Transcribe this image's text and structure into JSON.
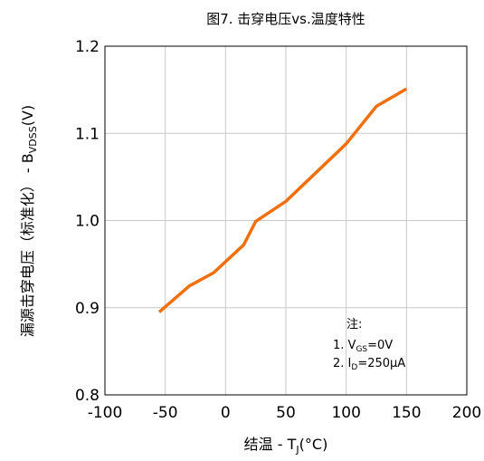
{
  "chart_data": {
    "type": "line",
    "title": "图7. 击穿电压vs.温度特性",
    "xlabel": {
      "main": "结温 - T",
      "sub": "J",
      "suffix": "(°C)"
    },
    "ylabel": {
      "main": "漏源击穿电压（标准化） - B",
      "sub": "VDSS",
      "suffix": "(V)"
    },
    "xlim": [
      -100,
      200
    ],
    "ylim": [
      0.8,
      1.2
    ],
    "x_ticks": [
      "-100",
      "-50",
      "0",
      "50",
      "100",
      "150",
      "200"
    ],
    "y_ticks": [
      "0.8",
      "0.9",
      "1.0",
      "1.1",
      "1.2"
    ],
    "grid": true,
    "series": [
      {
        "color": "#f07010",
        "x": [
          -55,
          -30,
          -10,
          15,
          25,
          50,
          75,
          100,
          125,
          150
        ],
        "y": [
          0.895,
          0.925,
          0.94,
          0.972,
          0.999,
          1.022,
          1.055,
          1.088,
          1.131,
          1.151
        ]
      }
    ],
    "annotation": {
      "title": "注:",
      "lines": [
        {
          "prefix": "1. V",
          "sub": "GS",
          "suffix": "=0V"
        },
        {
          "prefix": "2. I",
          "sub": "D",
          "suffix": "=250μA"
        }
      ]
    }
  }
}
